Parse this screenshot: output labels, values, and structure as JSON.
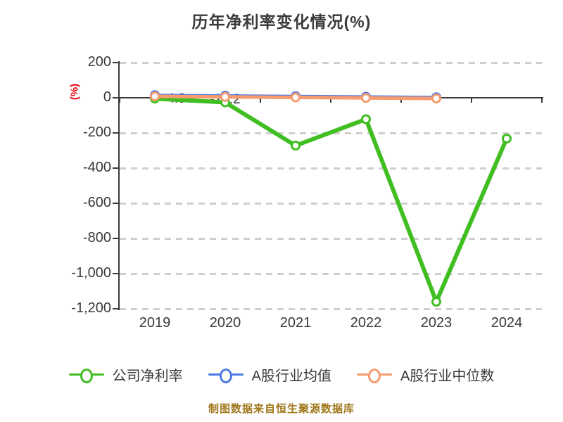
{
  "title": "历年净利率变化情况(%)",
  "y_axis_unit": "(%)",
  "source_note": "制图数据来自恒生聚源数据库",
  "legend": [
    {
      "label": "公司净利率",
      "color": "#41be22"
    },
    {
      "label": "A股行业均值",
      "color": "#4d7be5"
    },
    {
      "label": "A股行业中位数",
      "color": "#f89b6e"
    }
  ],
  "chart_data": {
    "type": "line",
    "title": "历年净利率变化情况(%)",
    "ylabel": "(%)",
    "x": [
      "2019",
      "2020",
      "2021",
      "2022",
      "2023",
      "2024"
    ],
    "series": [
      {
        "name": "公司净利率",
        "color": "#41be22",
        "values": [
          -4.8,
          -26.2,
          -272,
          -122,
          -1160,
          -232
        ],
        "point_labels": [
          "-4.8",
          "-26.2",
          "",
          "",
          "",
          ""
        ]
      },
      {
        "name": "A股行业均值",
        "color": "#4d7be5",
        "values": [
          15,
          12,
          9,
          6,
          3,
          null
        ]
      },
      {
        "name": "A股行业中位数",
        "color": "#f89b6e",
        "values": [
          8,
          5,
          2,
          -1,
          -4,
          null
        ]
      }
    ],
    "ylim": [
      -1200,
      200
    ],
    "yticks": [
      200,
      0,
      -200,
      -400,
      -600,
      -800,
      -1000,
      -1200
    ],
    "ytick_labels": [
      "200",
      "0",
      "-200",
      "-400",
      "-600",
      "-800",
      "-1,000",
      "-1,200"
    ],
    "grid": "horizontal dashed",
    "legend_position": "bottom",
    "marker": "circle-open",
    "colors": {
      "axis": "#3a3a3c",
      "grid": "#cfcfcf",
      "title": "#3a3a3c",
      "y_unit": "#e60012",
      "point_label": "#333333",
      "source_note": "#a0781c"
    }
  }
}
